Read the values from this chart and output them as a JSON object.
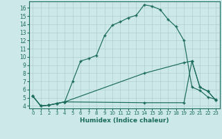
{
  "xlabel": "Humidex (Indice chaleur)",
  "bg_color": "#cce8e8",
  "grid_color": "#b0d0cc",
  "line_color": "#1a6b5a",
  "xlim": [
    -0.5,
    23.5
  ],
  "ylim": [
    3.7,
    16.8
  ],
  "xticks": [
    0,
    1,
    2,
    3,
    4,
    5,
    6,
    7,
    8,
    9,
    10,
    11,
    12,
    13,
    14,
    15,
    16,
    17,
    18,
    19,
    20,
    21,
    22,
    23
  ],
  "yticks": [
    4,
    5,
    6,
    7,
    8,
    9,
    10,
    11,
    12,
    13,
    14,
    15,
    16
  ],
  "curve1_x": [
    0,
    1,
    2,
    3,
    4,
    5,
    6,
    7,
    8,
    9,
    10,
    11,
    12,
    13,
    14,
    15,
    16,
    17,
    18,
    19,
    20,
    21,
    22,
    23
  ],
  "curve1_y": [
    5.2,
    4.0,
    4.1,
    4.3,
    4.5,
    7.0,
    9.5,
    9.8,
    10.2,
    12.6,
    13.9,
    14.3,
    14.8,
    15.1,
    16.4,
    16.2,
    15.8,
    14.6,
    13.7,
    12.0,
    6.3,
    5.9,
    5.1,
    4.8
  ],
  "curve2_x": [
    0,
    1,
    2,
    3,
    4,
    14,
    19,
    20,
    21,
    22,
    23
  ],
  "curve2_y": [
    5.2,
    4.0,
    4.1,
    4.3,
    4.5,
    4.4,
    4.4,
    9.5,
    6.3,
    5.8,
    4.7
  ],
  "curve3_x": [
    0,
    1,
    2,
    3,
    4,
    14,
    19,
    20,
    21,
    22,
    23
  ],
  "curve3_y": [
    5.2,
    4.0,
    4.1,
    4.3,
    4.5,
    8.0,
    9.3,
    9.5,
    6.3,
    5.8,
    4.7
  ]
}
